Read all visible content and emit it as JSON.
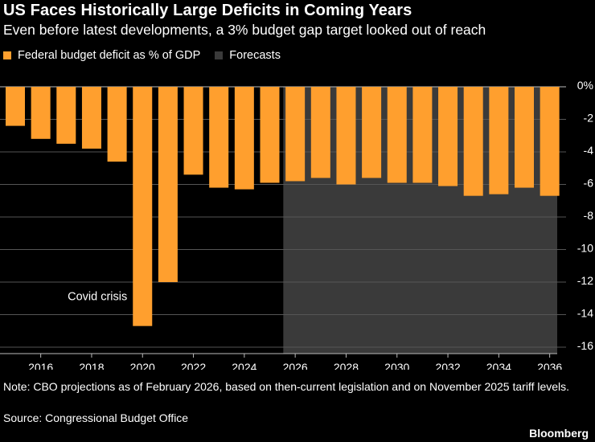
{
  "colors": {
    "background": "#000000",
    "bar": "#ff9f2e",
    "forecast_shade": "#3a3a3a",
    "grid": "#555555",
    "text": "#ffffff"
  },
  "header": {
    "title": "US Faces Historically Large Deficits in Coming Years",
    "subtitle": "Even before latest developments, a 3% budget gap target looked out of reach"
  },
  "legend": {
    "deficit_label": "Federal budget deficit as % of GDP",
    "forecast_label": "Forecasts"
  },
  "chart_data": {
    "type": "bar",
    "title": "US Faces Historically Large Deficits in Coming Years",
    "subtitle": "Even before latest developments, a 3% budget gap target looked out of reach",
    "xlabel": "",
    "ylabel": "Federal budget deficit as % of GDP",
    "categories": [
      2015,
      2016,
      2017,
      2018,
      2019,
      2020,
      2021,
      2022,
      2023,
      2024,
      2025,
      2026,
      2027,
      2028,
      2029,
      2030,
      2031,
      2032,
      2033,
      2034,
      2035,
      2036
    ],
    "series": [
      {
        "name": "Federal budget deficit as % of GDP",
        "values": [
          -2.4,
          -3.2,
          -3.5,
          -3.8,
          -4.6,
          -14.7,
          -12.0,
          -5.4,
          -6.2,
          -6.3,
          -5.9,
          -5.8,
          -5.6,
          -6.0,
          -5.6,
          -5.9,
          -5.9,
          -6.1,
          -6.7,
          -6.6,
          -6.2,
          -6.7
        ]
      }
    ],
    "forecast_start": 2026,
    "x_ticks": [
      2016,
      2018,
      2020,
      2022,
      2024,
      2026,
      2028,
      2030,
      2032,
      2034,
      2036
    ],
    "y_ticks": [
      0,
      -2,
      -4,
      -6,
      -8,
      -10,
      -12,
      -14,
      -16
    ],
    "y_tick_labels": [
      "0%",
      "-2",
      "-4",
      "-6",
      "-8",
      "-10",
      "-12",
      "-14",
      "-16"
    ],
    "ylim": [
      -16,
      0
    ],
    "grid": true,
    "annotation": "Covid crisis",
    "legend": [
      "Federal budget deficit as % of GDP",
      "Forecasts"
    ]
  },
  "footer": {
    "note": "Note: CBO projections as of February 2026, based on then-current legislation and on November 2025 tariff levels.",
    "source": "Source: Congressional Budget Office",
    "brand": "Bloomberg"
  }
}
